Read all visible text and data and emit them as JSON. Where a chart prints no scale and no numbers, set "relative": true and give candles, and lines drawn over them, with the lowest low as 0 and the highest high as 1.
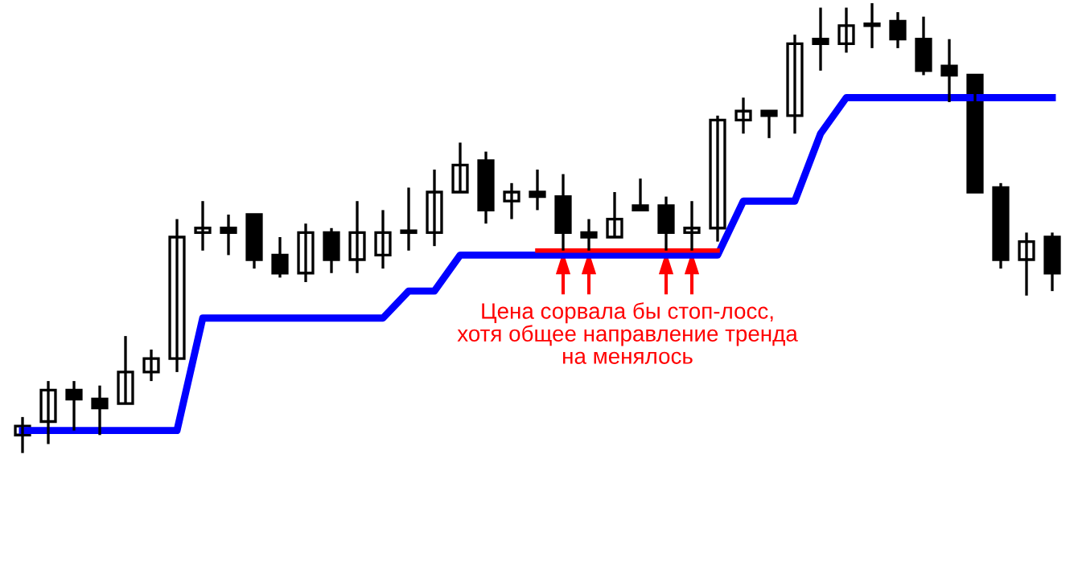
{
  "chart_data": {
    "type": "candlestick",
    "relative": true,
    "categories": [
      null,
      null,
      null,
      null,
      null,
      null,
      null,
      null,
      null,
      null,
      null,
      null,
      null,
      null,
      null,
      null,
      null,
      null,
      null,
      null,
      null,
      null,
      null,
      null,
      null,
      null,
      null,
      null,
      null,
      null,
      null,
      null,
      null,
      null,
      null,
      null,
      null,
      null,
      null,
      null,
      null
    ],
    "ohlc": [
      [
        0.04,
        0.08,
        0,
        0.06
      ],
      [
        0.07,
        0.16,
        0.02,
        0.14
      ],
      [
        0.14,
        0.16,
        0.05,
        0.12
      ],
      [
        0.12,
        0.15,
        0.04,
        0.1
      ],
      [
        0.11,
        0.26,
        0.11,
        0.18
      ],
      [
        0.18,
        0.23,
        0.16,
        0.21
      ],
      [
        0.21,
        0.52,
        0.18,
        0.48
      ],
      [
        0.49,
        0.56,
        0.45,
        0.5
      ],
      [
        0.5,
        0.53,
        0.44,
        0.49
      ],
      [
        0.53,
        0.53,
        0.41,
        0.43
      ],
      [
        0.44,
        0.48,
        0.39,
        0.4
      ],
      [
        0.4,
        0.51,
        0.38,
        0.49
      ],
      [
        0.49,
        0.5,
        0.4,
        0.43
      ],
      [
        0.43,
        0.56,
        0.4,
        0.49
      ],
      [
        0.44,
        0.54,
        0.41,
        0.49
      ],
      [
        0.49,
        0.59,
        0.45,
        0.49
      ],
      [
        0.49,
        0.63,
        0.46,
        0.58
      ],
      [
        0.58,
        0.69,
        0.58,
        0.64
      ],
      [
        0.65,
        0.67,
        0.51,
        0.54
      ],
      [
        0.56,
        0.6,
        0.52,
        0.58
      ],
      [
        0.58,
        0.63,
        0.54,
        0.57
      ],
      [
        0.57,
        0.62,
        0.45,
        0.49
      ],
      [
        0.49,
        0.52,
        0.45,
        0.48
      ],
      [
        0.48,
        0.58,
        0.48,
        0.52
      ],
      [
        0.55,
        0.61,
        0.54,
        0.54
      ],
      [
        0.55,
        0.57,
        0.45,
        0.49
      ],
      [
        0.49,
        0.56,
        0.45,
        0.5
      ],
      [
        0.5,
        0.75,
        0.47,
        0.74
      ],
      [
        0.74,
        0.79,
        0.71,
        0.76
      ],
      [
        0.76,
        0.76,
        0.7,
        0.75
      ],
      [
        0.75,
        0.93,
        0.71,
        0.91
      ],
      [
        0.92,
        0.99,
        0.85,
        0.91
      ],
      [
        0.91,
        0.99,
        0.89,
        0.95
      ],
      [
        0.95,
        1,
        0.9,
        0.95
      ],
      [
        0.96,
        0.98,
        0.9,
        0.92
      ],
      [
        0.92,
        0.97,
        0.84,
        0.85
      ],
      [
        0.86,
        0.92,
        0.78,
        0.84
      ],
      [
        0.84,
        0.84,
        0.58,
        0.58
      ],
      [
        0.59,
        0.6,
        0.41,
        0.43
      ],
      [
        0.43,
        0.49,
        0.35,
        0.47
      ],
      [
        0.48,
        0.49,
        0.36,
        0.4
      ]
    ],
    "series": [
      {
        "type": "line",
        "color": "#0000ff",
        "values": [
          0.05,
          0.05,
          0.05,
          0.05,
          0.05,
          0.05,
          0.05,
          0.3,
          0.3,
          0.3,
          0.3,
          0.3,
          0.3,
          0.3,
          0.3,
          0.36,
          0.36,
          0.44,
          0.44,
          0.44,
          0.44,
          0.44,
          0.44,
          0.44,
          0.44,
          0.44,
          0.44,
          0.44,
          0.56,
          0.56,
          0.56,
          0.71,
          0.79,
          0.79,
          0.79,
          0.79,
          0.79,
          0.79,
          0.79,
          0.79,
          0.79
        ]
      },
      {
        "type": "line",
        "color": "#ff0000",
        "values": [
          null,
          null,
          null,
          null,
          null,
          null,
          null,
          null,
          null,
          null,
          null,
          null,
          null,
          null,
          null,
          null,
          null,
          null,
          null,
          null,
          0.45,
          0.45,
          0.45,
          0.45,
          0.45,
          0.45,
          0.45,
          0.45,
          null,
          null,
          null,
          null,
          null,
          null,
          null,
          null,
          null,
          null,
          null,
          null,
          null
        ]
      }
    ],
    "annotations": [
      "Цена сорвала бы стоп-лосс,\nхотя общее направление тренда\nна менялось"
    ]
  }
}
